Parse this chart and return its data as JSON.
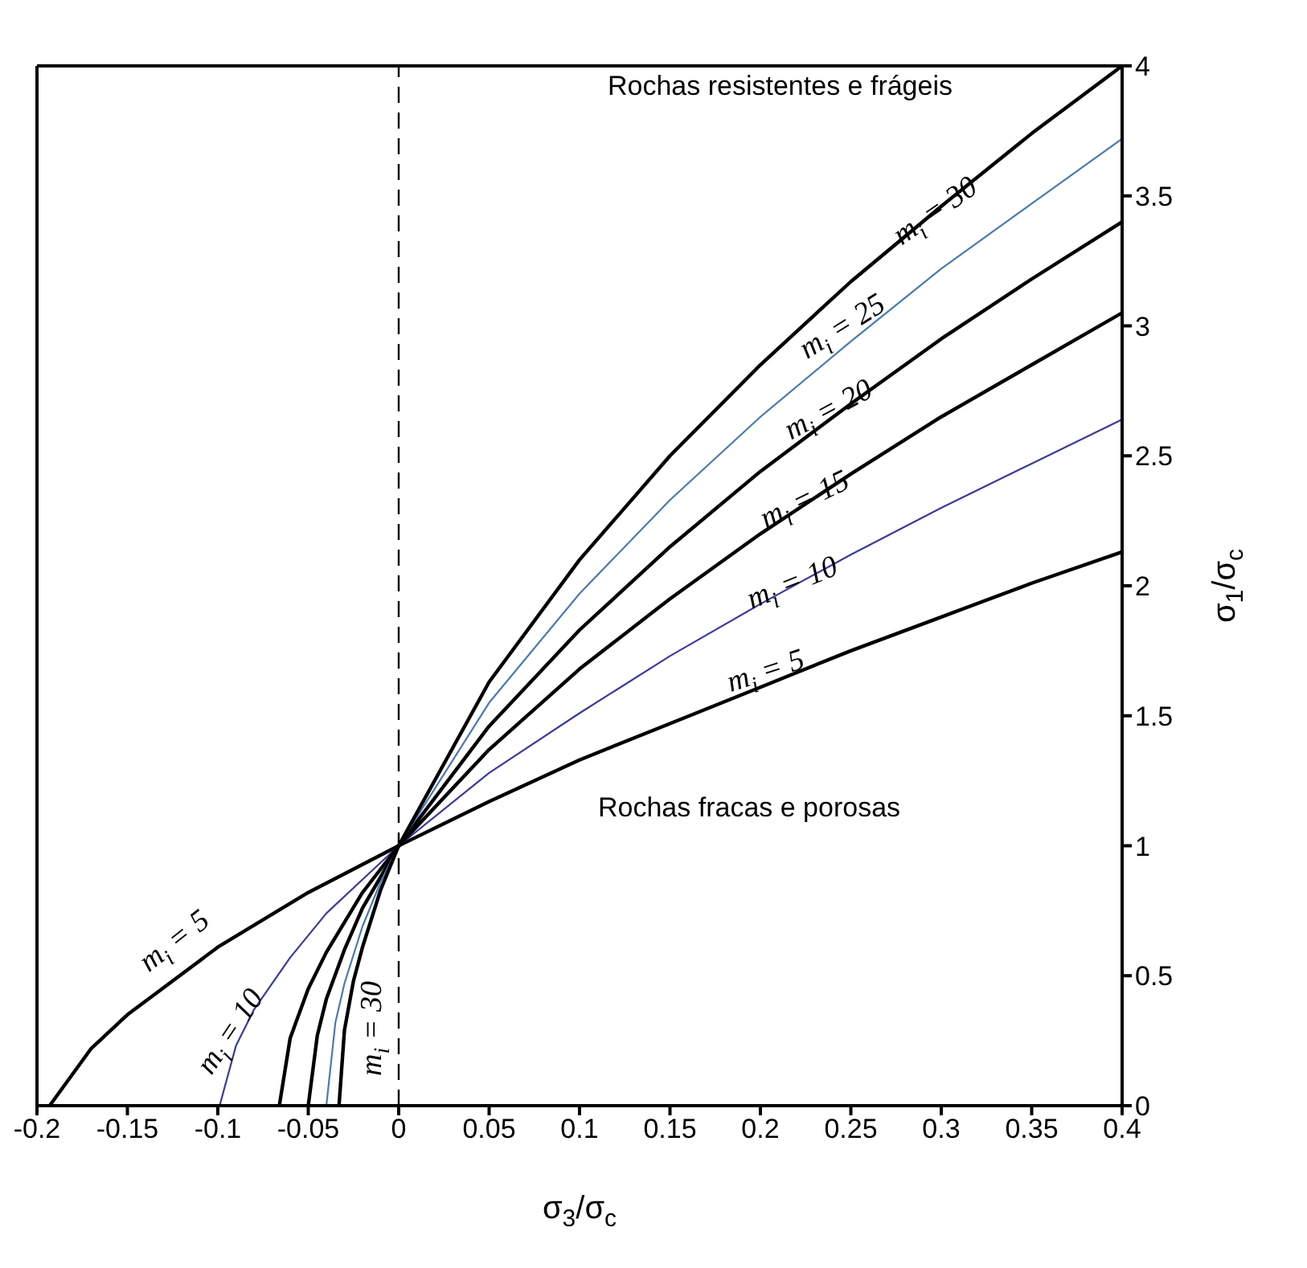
{
  "chart_data": {
    "type": "line",
    "xlabel": "σ$_{3}$/σ$_{c}$",
    "ylabel": "σ$_{1}$/σ$_{c}$",
    "xlim": [
      -0.2,
      0.4
    ],
    "ylim": [
      0,
      4
    ],
    "xticks": [
      -0.2,
      -0.15,
      -0.1,
      -0.05,
      0,
      0.05,
      0.1,
      0.15,
      0.2,
      0.25,
      0.3,
      0.35,
      0.4
    ],
    "yticks": [
      0,
      0.5,
      1,
      1.5,
      2,
      2.5,
      3,
      3.5,
      4
    ],
    "grid": false,
    "marker": "none",
    "line_style": "solid",
    "series": [
      {
        "color": "#000000",
        "x": [
          -0.193,
          -0.17,
          -0.15,
          -0.1,
          -0.05,
          0,
          0.05,
          0.1,
          0.15,
          0.2,
          0.25,
          0.3,
          0.35,
          0.4
        ],
        "values": [
          0,
          0.22,
          0.35,
          0.61,
          0.82,
          1,
          1.17,
          1.33,
          1.47,
          1.61,
          1.75,
          1.88,
          2.01,
          2.13
        ]
      },
      {
        "color": "#3a3a9c",
        "x": [
          -0.099,
          -0.09,
          -0.08,
          -0.06,
          -0.04,
          -0.02,
          0,
          0.05,
          0.1,
          0.15,
          0.2,
          0.25,
          0.3,
          0.35,
          0.4
        ],
        "values": [
          0,
          0.23,
          0.37,
          0.57,
          0.74,
          0.87,
          1,
          1.28,
          1.51,
          1.73,
          1.93,
          2.12,
          2.3,
          2.47,
          2.64
        ]
      },
      {
        "color": "#000000",
        "x": [
          -0.066,
          -0.06,
          -0.05,
          -0.04,
          -0.02,
          0,
          0.05,
          0.1,
          0.15,
          0.2,
          0.25,
          0.3,
          0.35,
          0.4
        ],
        "values": [
          0,
          0.26,
          0.45,
          0.59,
          0.82,
          1,
          1.37,
          1.68,
          1.95,
          2.2,
          2.43,
          2.65,
          2.85,
          3.05
        ]
      },
      {
        "color": "#000000",
        "x": [
          -0.05,
          -0.045,
          -0.04,
          -0.03,
          -0.02,
          -0.01,
          0,
          0.05,
          0.1,
          0.15,
          0.2,
          0.25,
          0.3,
          0.35,
          0.4
        ],
        "values": [
          0,
          0.27,
          0.41,
          0.6,
          0.76,
          0.88,
          1,
          1.46,
          1.83,
          2.15,
          2.44,
          2.7,
          2.95,
          3.18,
          3.4
        ]
      },
      {
        "color": "#4a7ab0",
        "x": [
          -0.04,
          -0.035,
          -0.03,
          -0.02,
          -0.01,
          0,
          0.05,
          0.1,
          0.15,
          0.2,
          0.25,
          0.3,
          0.35,
          0.4
        ],
        "values": [
          0,
          0.32,
          0.47,
          0.69,
          0.86,
          1,
          1.55,
          1.97,
          2.33,
          2.65,
          2.94,
          3.22,
          3.47,
          3.72
        ]
      },
      {
        "color": "#000000",
        "x": [
          -0.033,
          -0.03,
          -0.025,
          -0.02,
          -0.01,
          0,
          0.05,
          0.1,
          0.15,
          0.2,
          0.25,
          0.3,
          0.35,
          0.4
        ],
        "values": [
          0,
          0.29,
          0.48,
          0.61,
          0.83,
          1,
          1.63,
          2.1,
          2.5,
          2.85,
          3.17,
          3.46,
          3.74,
          4
        ]
      }
    ],
    "ref_lines": [
      {
        "axis": "x",
        "value": 0,
        "color": "#000000",
        "line_style": "dashed"
      }
    ],
    "annotations": [
      "m$_{i}$ = 30",
      "m$_{i}$ = 25",
      "m$_{i}$ = 20",
      "m$_{i}$ = 15",
      "m$_{i}$ = 10",
      "m$_{i}$ = 5",
      "m$_{i}$ = 5",
      "m$_{i}$ = 10",
      "m$_{i}$ = 30",
      "Rochas resistentes e frágeis",
      "Rochas fracas e porosas"
    ]
  }
}
